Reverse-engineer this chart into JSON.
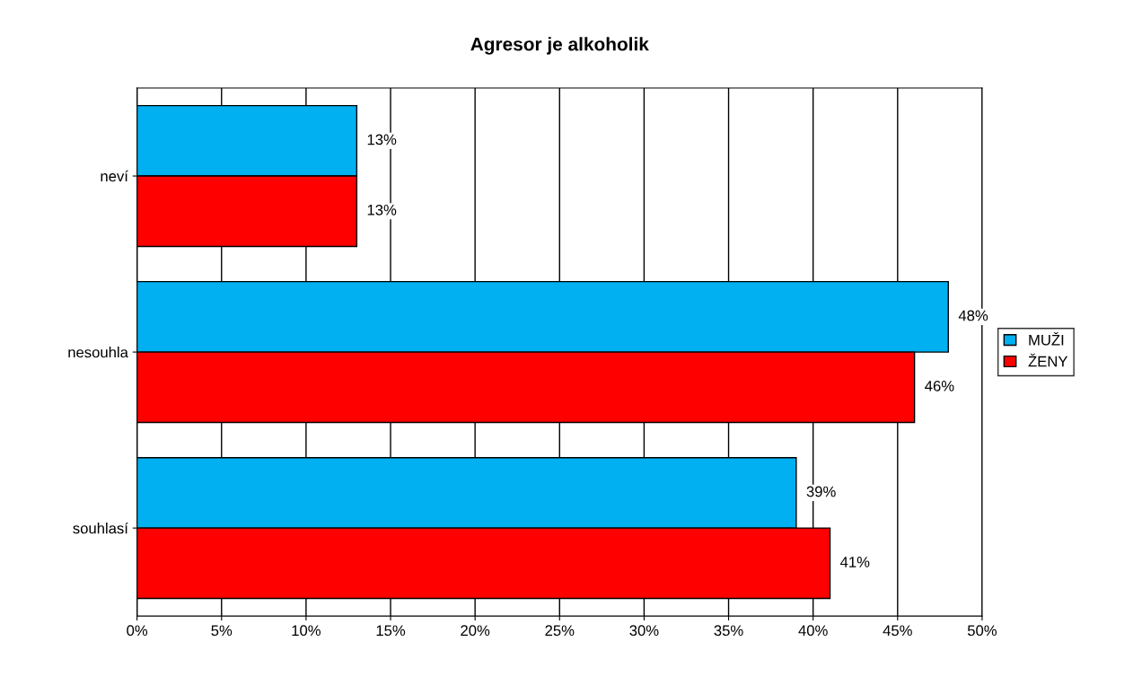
{
  "chart_data": {
    "type": "bar",
    "orientation": "horizontal",
    "title": "Agresor je alkoholik",
    "categories": [
      "neví",
      "nesouhla",
      "souhlasí"
    ],
    "series": [
      {
        "name": "MUŽI",
        "color": "#00b0f0",
        "values": [
          13,
          48,
          39
        ],
        "value_labels": [
          "13%",
          "48%",
          "39%"
        ]
      },
      {
        "name": "ŽENY",
        "color": "#ff0000",
        "values": [
          13,
          46,
          41
        ],
        "value_labels": [
          "13%",
          "46%",
          "41%"
        ]
      }
    ],
    "xlim": [
      0,
      50
    ],
    "xticks": [
      {
        "value": 0,
        "label": "0%"
      },
      {
        "value": 5,
        "label": "5%"
      },
      {
        "value": 10,
        "label": "10%"
      },
      {
        "value": 15,
        "label": "15%"
      },
      {
        "value": 20,
        "label": "20%"
      },
      {
        "value": 25,
        "label": "25%"
      },
      {
        "value": 30,
        "label": "30%"
      },
      {
        "value": 35,
        "label": "35%"
      },
      {
        "value": 40,
        "label": "40%"
      },
      {
        "value": 45,
        "label": "45%"
      },
      {
        "value": 50,
        "label": "50%"
      }
    ],
    "grid": "x",
    "legend": "right"
  }
}
